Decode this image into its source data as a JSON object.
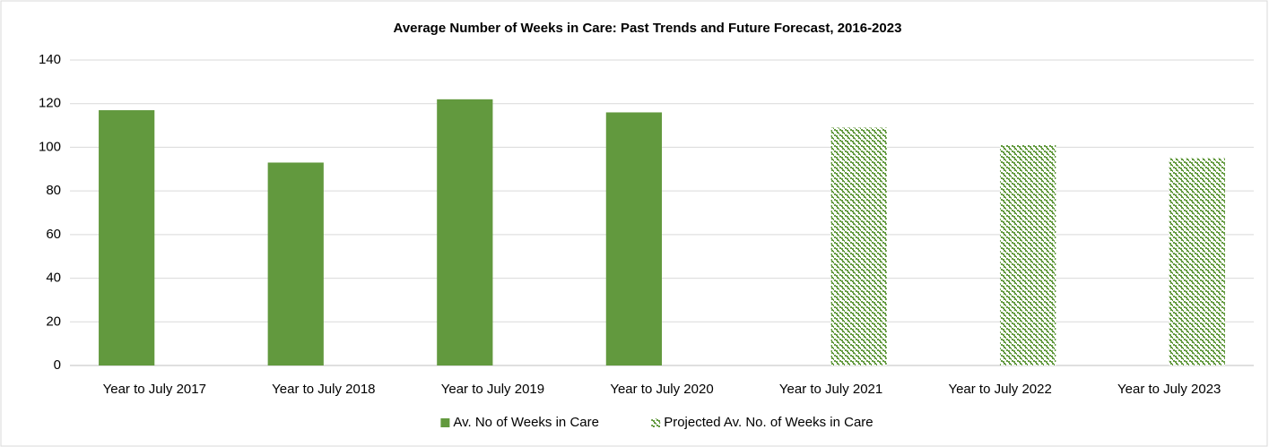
{
  "chart_data": {
    "type": "bar",
    "title": "Average Number of Weeks in Care: Past Trends and Future Forecast, 2016-2023",
    "categories": [
      "Year to July 2017",
      "Year to July 2018",
      "Year to July 2019",
      "Year to July 2020",
      "Year to July 2021",
      "Year to July 2022",
      "Year to July 2023"
    ],
    "series": [
      {
        "name": "Av. No of Weeks in Care",
        "color": "#62993e",
        "values": [
          117,
          93,
          122,
          116,
          null,
          null,
          null
        ]
      },
      {
        "name": "Projected Av. No. of Weeks in Care",
        "color": "#62993e",
        "hatch": "dots",
        "values": [
          null,
          null,
          null,
          null,
          109,
          101,
          95
        ]
      }
    ],
    "ylim": [
      0,
      140
    ],
    "yticks": [
      0,
      20,
      40,
      60,
      80,
      100,
      120,
      140
    ],
    "grid": true,
    "legend": "bottom"
  }
}
